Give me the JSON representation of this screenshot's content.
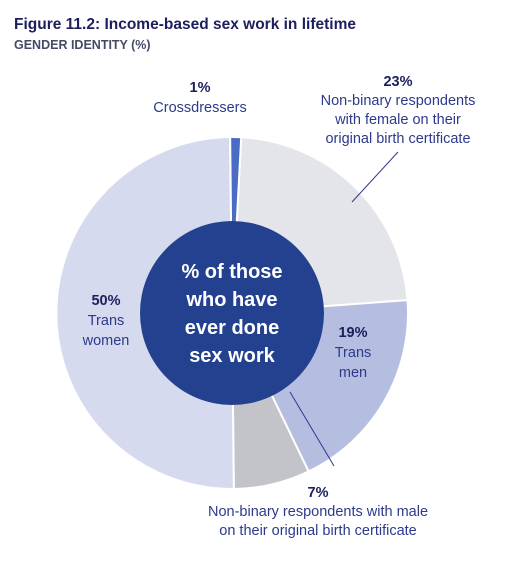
{
  "title": "Figure 11.2: Income-based sex work in lifetime",
  "subtitle": "GENDER IDENTITY (%)",
  "center_lines": [
    "% of those",
    "who have",
    "ever done",
    "sex work"
  ],
  "chart_data": {
    "type": "pie",
    "donut": true,
    "title": "Figure 11.2: Income-based sex work in lifetime",
    "subtitle": "GENDER IDENTITY (%)",
    "slices": [
      {
        "pct": "23%",
        "value": 23,
        "label_lines": [
          "Non-binary respondents",
          "with female on their",
          "original birth certificate"
        ],
        "color": "#e4e5ea"
      },
      {
        "pct": "19%",
        "value": 19,
        "label_lines": [
          "Trans",
          "men"
        ],
        "color": "#b5bde0"
      },
      {
        "pct": "7%",
        "value": 7,
        "label_lines": [
          "Non-binary respondents with male",
          "on their original birth certificate"
        ],
        "color": "#c3c4c9"
      },
      {
        "pct": "50%",
        "value": 50,
        "label_lines": [
          "Trans",
          "women"
        ],
        "color": "#d6daee"
      },
      {
        "pct": "1%",
        "value": 1,
        "label_lines": [
          "Crossdressers"
        ],
        "color": "#4a6cc4"
      }
    ],
    "center_color": "#23418f",
    "text_color": "#2d3a8c"
  }
}
